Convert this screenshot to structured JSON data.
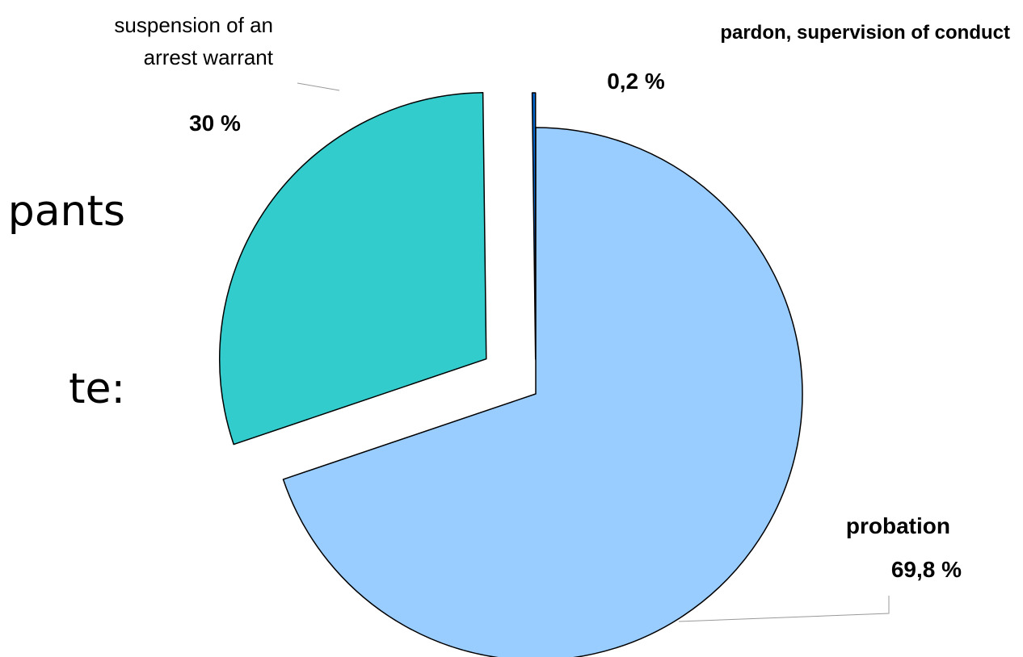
{
  "slide": {
    "fragments": [
      "pants",
      "te:"
    ]
  },
  "chart_data": {
    "type": "pie",
    "exploded": true,
    "categories": [
      "pardon, supervision of conduct",
      "suspension of an arrest warrant",
      "probation"
    ],
    "values": [
      0.2,
      30,
      69.8
    ],
    "value_labels": [
      "0,2 %",
      "30 %",
      "69,8  %"
    ],
    "category_label_lines": [
      [
        "pardon, supervision of conduct"
      ],
      [
        "suspension of an",
        "arrest warrant"
      ],
      [
        "probation"
      ]
    ],
    "colors": [
      "#0066cc",
      "#33cccc",
      "#99ccff"
    ],
    "outline_color": "#000000",
    "leader_line_color": "#999999"
  }
}
